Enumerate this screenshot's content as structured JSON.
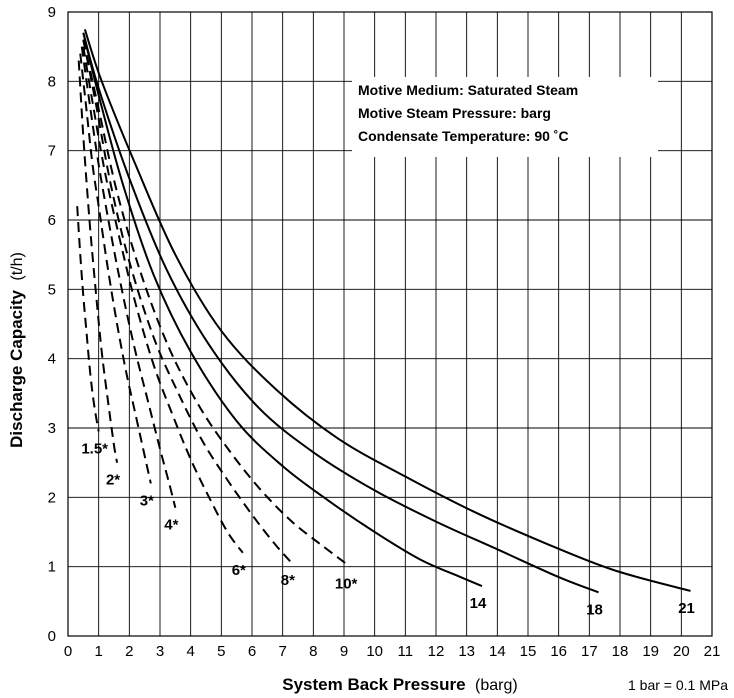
{
  "chart_data": {
    "type": "line",
    "xlabel": "System Back Pressure",
    "xlabel_unit": "(barg)",
    "ylabel": "Discharge Capacity",
    "ylabel_unit": "(t/h)",
    "xlim": [
      0,
      21
    ],
    "ylim": [
      0,
      9
    ],
    "x_ticks": [
      "0",
      "1",
      "2",
      "3",
      "4",
      "5",
      "6",
      "7",
      "8",
      "9",
      "10",
      "11",
      "12",
      "13",
      "14",
      "15",
      "16",
      "17",
      "18",
      "19",
      "20",
      "21"
    ],
    "y_ticks": [
      "0",
      "1",
      "2",
      "3",
      "4",
      "5",
      "6",
      "7",
      "8",
      "9"
    ],
    "grid": true,
    "legend": "none",
    "info_box": {
      "line1": "Motive Medium:  Saturated  Steam",
      "line2": "Motive  Steam  Pressure:  barg",
      "line3": "Condensate Temperature: 90 ˚C"
    },
    "note": "1 bar = 0.1 MPa",
    "series": [
      {
        "name": "1.5*",
        "style": "dashed",
        "x": [
          0.3,
          0.4,
          0.5,
          0.6,
          0.7,
          0.8,
          0.9,
          1.0
        ],
        "y": [
          6.2,
          5.5,
          4.9,
          4.4,
          3.9,
          3.5,
          3.2,
          2.95
        ]
      },
      {
        "name": "2*",
        "style": "dashed",
        "x": [
          0.35,
          0.5,
          0.7,
          0.9,
          1.1,
          1.3,
          1.5,
          1.6
        ],
        "y": [
          8.3,
          7.2,
          6.0,
          5.0,
          4.1,
          3.4,
          2.75,
          2.5
        ]
      },
      {
        "name": "3*",
        "style": "dashed",
        "x": [
          0.4,
          0.6,
          0.8,
          1.0,
          1.3,
          1.6,
          1.9,
          2.2,
          2.5,
          2.7
        ],
        "y": [
          8.4,
          7.6,
          6.8,
          6.2,
          5.3,
          4.5,
          3.8,
          3.2,
          2.6,
          2.2
        ]
      },
      {
        "name": "4*",
        "style": "dashed",
        "x": [
          0.45,
          0.7,
          1.0,
          1.4,
          1.8,
          2.2,
          2.6,
          3.0,
          3.3,
          3.5
        ],
        "y": [
          8.5,
          7.7,
          6.8,
          5.8,
          4.9,
          4.1,
          3.4,
          2.7,
          2.2,
          1.85
        ]
      },
      {
        "name": "6*",
        "style": "dashed",
        "x": [
          0.5,
          0.8,
          1.2,
          1.7,
          2.2,
          2.8,
          3.4,
          4.0,
          4.6,
          5.2,
          5.7
        ],
        "y": [
          8.5,
          7.7,
          6.7,
          5.7,
          4.8,
          3.9,
          3.2,
          2.55,
          2.0,
          1.5,
          1.2
        ]
      },
      {
        "name": "8*",
        "style": "dashed",
        "x": [
          0.5,
          0.9,
          1.4,
          2.0,
          2.8,
          3.6,
          4.4,
          5.2,
          6.0,
          6.7,
          7.3
        ],
        "y": [
          8.6,
          7.7,
          6.5,
          5.4,
          4.3,
          3.5,
          2.8,
          2.25,
          1.75,
          1.35,
          1.05
        ]
      },
      {
        "name": "10*",
        "style": "dashed",
        "x": [
          0.5,
          1.0,
          1.6,
          2.4,
          3.3,
          4.3,
          5.3,
          6.3,
          7.3,
          8.3,
          9.2
        ],
        "y": [
          8.6,
          7.6,
          6.4,
          5.2,
          4.15,
          3.3,
          2.65,
          2.1,
          1.65,
          1.3,
          1.0
        ]
      },
      {
        "name": "14",
        "style": "solid",
        "x": [
          0.5,
          1.0,
          1.8,
          2.8,
          4.0,
          5.5,
          7.0,
          8.5,
          10.0,
          11.5,
          12.8,
          13.5
        ],
        "y": [
          8.7,
          7.8,
          6.5,
          5.2,
          4.1,
          3.1,
          2.45,
          1.95,
          1.5,
          1.1,
          0.85,
          0.72
        ]
      },
      {
        "name": "18",
        "style": "solid",
        "x": [
          0.5,
          1.0,
          2.0,
          3.2,
          4.6,
          6.2,
          8.0,
          10.0,
          12.0,
          14.0,
          16.0,
          17.3
        ],
        "y": [
          8.7,
          7.9,
          6.6,
          5.3,
          4.2,
          3.3,
          2.65,
          2.1,
          1.65,
          1.25,
          0.85,
          0.63
        ]
      },
      {
        "name": "21",
        "style": "solid",
        "x": [
          0.55,
          1.1,
          2.2,
          3.5,
          5.0,
          6.8,
          8.8,
          11.0,
          13.2,
          15.5,
          17.8,
          20.3
        ],
        "y": [
          8.75,
          8.0,
          6.8,
          5.5,
          4.4,
          3.55,
          2.85,
          2.3,
          1.8,
          1.35,
          0.95,
          0.65
        ]
      }
    ]
  }
}
